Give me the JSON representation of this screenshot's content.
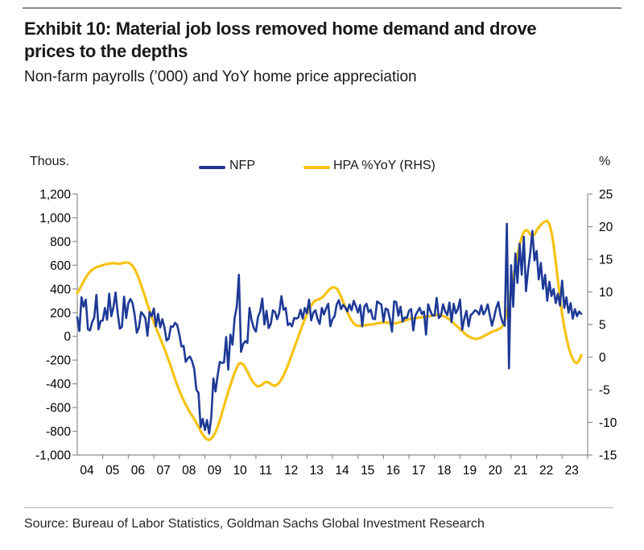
{
  "title": {
    "line1": "Exhibit 10: Material job loss removed home demand and drove",
    "line2": "prices to the depths"
  },
  "subtitle": "Non-farm payrolls (’000) and YoY home price appreciation",
  "axis_unit_left": "Thous.",
  "axis_unit_right": "%",
  "legend": [
    {
      "label": "NFP",
      "color": "#1e3a96"
    },
    {
      "label": "HPA %YoY (RHS)",
      "color": "#f6c214"
    }
  ],
  "source": "Source: Bureau of Labor Statistics, Goldman Sachs Global Investment Research",
  "colors": {
    "nfp_line": "#1e3a96",
    "hpa_line": "#f6c214",
    "axis": "#8c8c8c",
    "tick_text": "#000000"
  },
  "chart_data": {
    "type": "line",
    "title": "Non-farm payrolls ('000) and YoY home price appreciation",
    "frequency": "monthly",
    "start_year": 2004,
    "end_point": "Oct 2023",
    "grid": false,
    "legend_position": "top-center",
    "x_axis": {
      "tick_labels": [
        "04",
        "05",
        "06",
        "07",
        "08",
        "09",
        "10",
        "11",
        "12",
        "13",
        "14",
        "15",
        "16",
        "17",
        "18",
        "19",
        "20",
        "21",
        "22",
        "23"
      ]
    },
    "left_axis": {
      "label": "Thous.",
      "min": -1000,
      "max": 1200,
      "tick_step": 200,
      "tick_labels": [
        "1,200",
        "1,000",
        "800",
        "600",
        "400",
        "200",
        "0",
        "-200",
        "-400",
        "-600",
        "-800",
        "-1,000"
      ]
    },
    "right_axis": {
      "label": "%",
      "min": -15,
      "max": 25,
      "tick_step": 5,
      "tick_labels": [
        "25",
        "20",
        "15",
        "10",
        "5",
        "0",
        "-5",
        "-10",
        "-15"
      ]
    },
    "series": [
      {
        "name": "NFP",
        "axis": "left",
        "color": "#1e3a96",
        "values": [
          160,
          45,
          330,
          250,
          310,
          60,
          50,
          120,
          160,
          350,
          60,
          130,
          135,
          240,
          140,
          360,
          170,
          245,
          370,
          195,
          65,
          80,
          335,
          155,
          280,
          315,
          280,
          180,
          30,
          75,
          205,
          185,
          155,
          5,
          205,
          170,
          235,
          85,
          190,
          75,
          145,
          75,
          -35,
          -20,
          85,
          80,
          115,
          95,
          15,
          -85,
          -80,
          -215,
          -185,
          -170,
          -210,
          -275,
          -450,
          -475,
          -765,
          -695,
          -790,
          -705,
          -820,
          -685,
          -355,
          -465,
          -330,
          -215,
          -225,
          -220,
          -5,
          -280,
          15,
          -70,
          155,
          250,
          520,
          -130,
          -65,
          -40,
          -55,
          240,
          135,
          70,
          40,
          165,
          210,
          320,
          100,
          215,
          70,
          105,
          220,
          205,
          145,
          200,
          340,
          225,
          240,
          95,
          110,
          85,
          155,
          150,
          160,
          225,
          150,
          240,
          195,
          310,
          135,
          200,
          220,
          145,
          105,
          240,
          185,
          235,
          275,
          85,
          145,
          170,
          270,
          305,
          230,
          265,
          245,
          210,
          270,
          220,
          300,
          255,
          200,
          265,
          85,
          250,
          275,
          205,
          225,
          150,
          145,
          295,
          280,
          270,
          125,
          235,
          225,
          150,
          40,
          295,
          290,
          175,
          250,
          125,
          160,
          155,
          215,
          230,
          50,
          175,
          210,
          240,
          190,
          210,
          15,
          270,
          215,
          175,
          175,
          325,
          155,
          175,
          270,
          210,
          180,
          285,
          120,
          275,
          195,
          230,
          310,
          55,
          150,
          215,
          85,
          180,
          195,
          220,
          210,
          185,
          260,
          185,
          215,
          270,
          180,
          90,
          160,
          240,
          290,
          180,
          120,
          90,
          950,
          -270,
          600,
          250,
          700,
          450,
          780,
          520,
          840,
          380,
          560,
          700,
          890,
          640,
          720,
          480,
          620,
          400,
          520,
          300,
          460,
          340,
          400,
          280,
          360,
          260,
          470,
          240,
          330,
          200,
          280,
          150,
          230,
          170,
          210,
          190
        ]
      },
      {
        "name": "HPA %YoY (RHS)",
        "axis": "right",
        "color": "#f6c214",
        "values": [
          9.8,
          10.4,
          11.0,
          11.6,
          12.2,
          12.7,
          13.1,
          13.4,
          13.6,
          13.8,
          13.9,
          14.0,
          14.1,
          14.2,
          14.3,
          14.3,
          14.4,
          14.4,
          14.4,
          14.3,
          14.3,
          14.4,
          14.5,
          14.5,
          14.5,
          14.3,
          14.0,
          13.5,
          12.8,
          12.0,
          11.1,
          10.1,
          9.1,
          8.1,
          7.1,
          6.2,
          5.3,
          4.5,
          3.7,
          2.9,
          2.1,
          1.3,
          0.4,
          -0.5,
          -1.4,
          -2.4,
          -3.4,
          -4.3,
          -5.1,
          -5.9,
          -6.6,
          -7.3,
          -7.9,
          -8.5,
          -9.0,
          -9.5,
          -10.1,
          -10.7,
          -11.3,
          -11.9,
          -12.3,
          -12.6,
          -12.7,
          -12.5,
          -12.1,
          -11.5,
          -10.7,
          -9.7,
          -8.6,
          -7.5,
          -6.4,
          -5.3,
          -4.3,
          -3.3,
          -2.4,
          -1.6,
          -1.0,
          -0.9,
          -1.1,
          -1.6,
          -2.2,
          -2.9,
          -3.5,
          -4.0,
          -4.3,
          -4.5,
          -4.4,
          -4.2,
          -3.9,
          -3.8,
          -3.9,
          -4.1,
          -4.3,
          -4.4,
          -4.2,
          -3.9,
          -3.4,
          -2.8,
          -2.1,
          -1.3,
          -0.4,
          0.5,
          1.4,
          2.3,
          3.2,
          4.1,
          5.0,
          5.8,
          6.6,
          7.3,
          7.9,
          8.4,
          8.7,
          8.8,
          8.9,
          9.1,
          9.4,
          9.8,
          10.2,
          10.5,
          10.7,
          10.7,
          10.5,
          10.0,
          9.3,
          8.5,
          7.7,
          6.9,
          6.2,
          5.6,
          5.2,
          4.9,
          4.8,
          4.8,
          4.8,
          4.9,
          4.9,
          5.0,
          5.0,
          5.0,
          5.1,
          5.2,
          5.2,
          5.3,
          5.3,
          5.3,
          5.3,
          5.2,
          5.2,
          5.2,
          5.2,
          5.3,
          5.4,
          5.5,
          5.6,
          5.7,
          5.8,
          5.9,
          5.9,
          6.0,
          6.0,
          6.1,
          6.1,
          6.2,
          6.2,
          6.3,
          6.3,
          6.4,
          6.4,
          6.5,
          6.5,
          6.4,
          6.3,
          6.2,
          6.0,
          5.8,
          5.5,
          5.2,
          4.9,
          4.6,
          4.3,
          4.0,
          3.7,
          3.4,
          3.2,
          3.0,
          2.9,
          2.8,
          2.8,
          2.9,
          3.0,
          3.2,
          3.4,
          3.5,
          3.7,
          3.9,
          4.0,
          4.1,
          4.3,
          4.4,
          4.8,
          5.6,
          6.8,
          8.4,
          10.2,
          12.0,
          13.8,
          15.6,
          17.2,
          18.4,
          19.2,
          19.5,
          19.3,
          18.8,
          18.6,
          18.8,
          19.4,
          19.9,
          20.3,
          20.6,
          20.8,
          20.9,
          20.4,
          19.2,
          17.2,
          14.6,
          11.8,
          9.0,
          6.6,
          4.6,
          3.0,
          1.6,
          0.5,
          -0.3,
          -0.8,
          -0.9,
          -0.5,
          0.3
        ]
      }
    ]
  }
}
